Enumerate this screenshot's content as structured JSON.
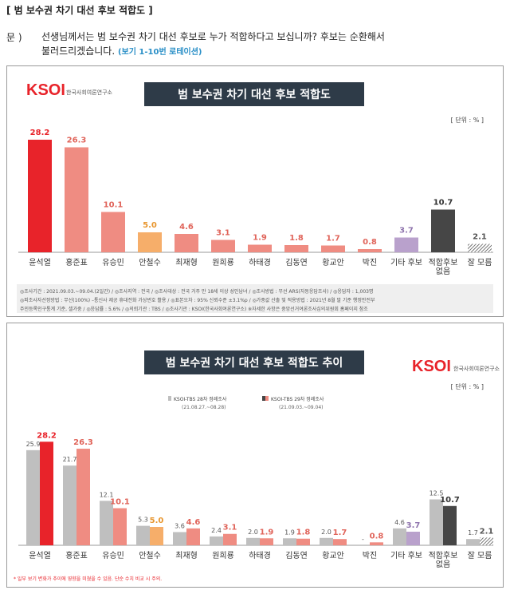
{
  "header": {
    "title": "[ 범 보수권 차기 대선 후보 적합도 ]"
  },
  "question": {
    "label": "문 )",
    "line1": "선생님께서는 범 보수권 차기 대선 후보로 누가 적합하다고 보십니까? 후보는 순환해서",
    "line2": "불러드리겠습니다.",
    "hint": "(보기 1-10번 로테이션)"
  },
  "logo": {
    "brand": "KSOI",
    "org": "한국사회여론연구소"
  },
  "colors": {
    "red": "#e8232a",
    "salmon": "#ef8c82",
    "orange": "#f6ae6a",
    "purple": "#b9a1cc",
    "dark": "#464646",
    "gray": "#bfbfbf",
    "title_bg": "#2e3b48"
  },
  "chart_data": [
    {
      "type": "bar",
      "title": "범 보수권 차기 대선 후보 적합도",
      "unit": "[ 단위 : % ]",
      "categories": [
        "윤석열",
        "홍준표",
        "유승민",
        "안철수",
        "최재형",
        "원희룡",
        "하태경",
        "김동연",
        "황교안",
        "박진",
        "기타 후보",
        "적합후보 없음",
        "잘 모름"
      ],
      "category_lines": [
        [
          "윤석열"
        ],
        [
          "홍준표"
        ],
        [
          "유승민"
        ],
        [
          "안철수"
        ],
        [
          "최재형"
        ],
        [
          "원희룡"
        ],
        [
          "하태경"
        ],
        [
          "김동연"
        ],
        [
          "황교안"
        ],
        [
          "박진"
        ],
        [
          "기타 후보"
        ],
        [
          "적합후보",
          "없음"
        ],
        [
          "잘 모름"
        ]
      ],
      "values": [
        28.2,
        26.3,
        10.1,
        5.0,
        4.6,
        3.1,
        1.9,
        1.8,
        1.7,
        0.8,
        3.7,
        10.7,
        2.1
      ],
      "value_labels": [
        "28.2",
        "26.3",
        "10.1",
        "5.0",
        "4.6",
        "3.1",
        "1.9",
        "1.8",
        "1.7",
        "0.8",
        "3.7",
        "10.7",
        "2.1"
      ],
      "ylim": [
        0,
        30
      ],
      "footnote_line1": "◎조사기간 : 2021.09.03.~09.04.(2일간)  / ◎조사지역 : 전국  / ◎조사대상 : 전국 거주 만 18세 이상 성인남녀  / ◎조사방법 : 무선 ARS(자동응답조사)  / ◎응답자 : 1,003명",
      "footnote_line2": "◎피조사자선정방법 : 무선(100%) –통신사 제공 휴대전화 가상번호 활용  / ◎표본오차 : 95% 신뢰수준 ±3.1%p  / ◎가중값 산출 및 적용방법 : 2021년 8월 말 기준 행정안전부",
      "footnote_line3": "주민등록인구통계 기준, 셀가중  / ◎응답률 : 5.6%  / ◎의뢰기관 : TBS  / ◎조사기관 : KSOI(한국사회여론연구소)    ※자세한 사항은 중앙선거여론조사심의위원회 홈페이지 참조"
    },
    {
      "type": "bar",
      "title": "범 보수권 차기 대선 후보 적합도 추이",
      "unit": "[ 단위 : % ]",
      "categories": [
        "윤석열",
        "홍준표",
        "유승민",
        "안철수",
        "최재형",
        "원희룡",
        "하태경",
        "김동연",
        "황교안",
        "박진",
        "기타 후보",
        "적합후보 없음",
        "잘 모름"
      ],
      "category_lines": [
        [
          "윤석열"
        ],
        [
          "홍준표"
        ],
        [
          "유승민"
        ],
        [
          "안철수"
        ],
        [
          "최재형"
        ],
        [
          "원희룡"
        ],
        [
          "하태경"
        ],
        [
          "김동연"
        ],
        [
          "황교안"
        ],
        [
          "박진"
        ],
        [
          "기타 후보"
        ],
        [
          "적합후보",
          "없음"
        ],
        [
          "잘 모름"
        ]
      ],
      "series": [
        {
          "name": "KSOI-TBS 28차 정례조사",
          "period": "(21.08.27.~08.28)",
          "values": [
            25.9,
            21.7,
            12.1,
            5.3,
            3.6,
            2.4,
            2.0,
            1.9,
            2.0,
            null,
            4.6,
            12.5,
            1.7
          ],
          "value_labels": [
            "25.9",
            "21.7",
            "12.1",
            "5.3",
            "3.6",
            "2.4",
            "2.0",
            "1.9",
            "2.0",
            "-",
            "4.6",
            "12.5",
            "1.7"
          ]
        },
        {
          "name": "KSOI-TBS 29차 정례조사",
          "period": "(21.09.03.~09.04)",
          "values": [
            28.2,
            26.3,
            10.1,
            5.0,
            4.6,
            3.1,
            1.9,
            1.8,
            1.7,
            0.8,
            3.7,
            10.7,
            2.1
          ],
          "value_labels": [
            "28.2",
            "26.3",
            "10.1",
            "5.0",
            "4.6",
            "3.1",
            "1.9",
            "1.8",
            "1.7",
            "0.8",
            "3.7",
            "10.7",
            "2.1"
          ]
        }
      ],
      "ylim": [
        0,
        30
      ],
      "note": "* 일부 보기 변화가 추이에 영향을 미쳤을 수 있음. 단순 수치 비교 시 주의."
    }
  ]
}
